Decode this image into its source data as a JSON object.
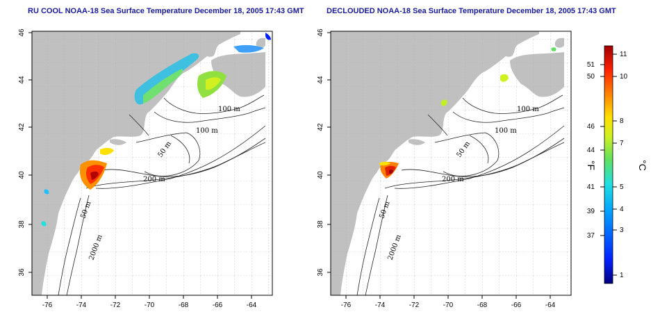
{
  "maps": [
    {
      "title": "RU COOL NOAA-18 Sea Surface Temperature December 18, 2005 17:43 GMT",
      "x_ticks": [
        "-76",
        "-74",
        "-72",
        "-70",
        "-68",
        "-66",
        "-64"
      ],
      "y_ticks": [
        "46",
        "44",
        "42",
        "40",
        "38",
        "36"
      ],
      "contour_labels": [
        "100 m",
        "100 m",
        "50 m",
        "200 m",
        "50 m",
        "2000 m"
      ]
    },
    {
      "title": "DECLOUDED NOAA-18 Sea Surface Temperature December 18, 2005 17:43 GMT",
      "x_ticks": [
        "-76",
        "-74",
        "-72",
        "-70",
        "-68",
        "-66",
        "-64"
      ],
      "y_ticks": [
        "46",
        "44",
        "42",
        "40",
        "38",
        "36"
      ],
      "contour_labels": [
        "100 m",
        "100 m",
        "50 m",
        "200 m",
        "50 m",
        "2000 m"
      ]
    }
  ],
  "colorbar": {
    "fahrenheit_label": "°F",
    "celsius_label": "°C",
    "fahrenheit_ticks": [
      "51",
      "50",
      "46",
      "44",
      "41",
      "39",
      "37"
    ],
    "celsius_ticks": [
      "11",
      "10",
      "8",
      "7",
      "5",
      "4",
      "3",
      "1"
    ],
    "colors": [
      "#000080",
      "#0020ff",
      "#00a0ff",
      "#20e0e0",
      "#60e060",
      "#d0f020",
      "#ffe000",
      "#ff8000",
      "#ff2000",
      "#a00000"
    ]
  }
}
